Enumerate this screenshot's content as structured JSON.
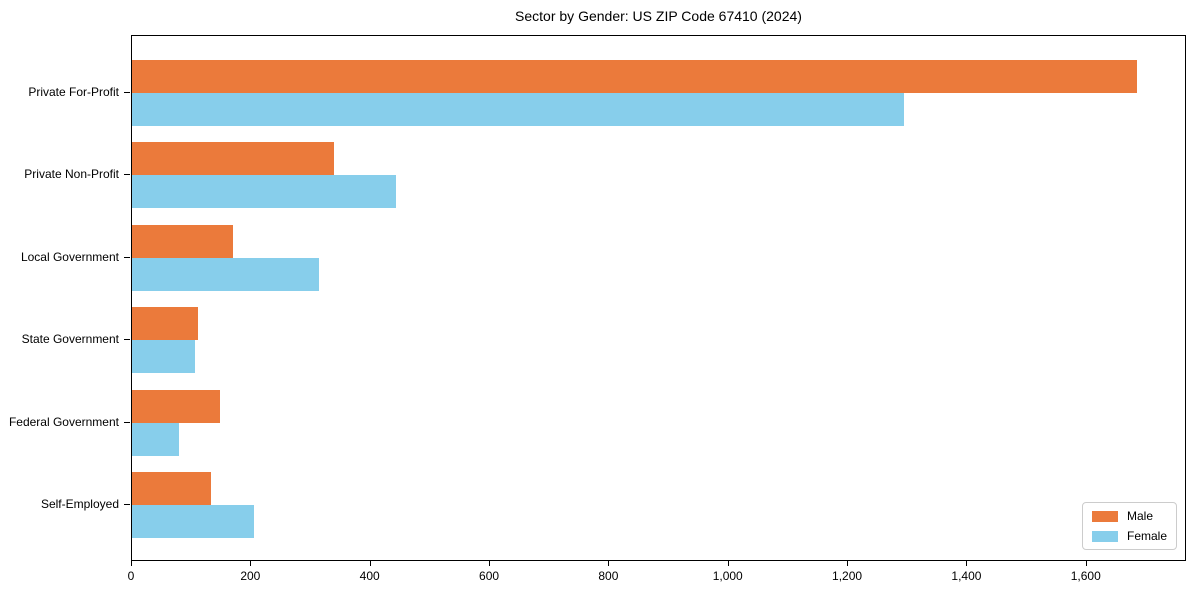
{
  "title": "Sector by Gender: US ZIP Code 67410 (2024)",
  "chart_data": {
    "type": "bar",
    "orientation": "horizontal",
    "title": "Sector by Gender: US ZIP Code 67410 (2024)",
    "categories": [
      "Private For-Profit",
      "Private Non-Profit",
      "Local Government",
      "State Government",
      "Federal Government",
      "Self-Employed"
    ],
    "series": [
      {
        "name": "Male",
        "color": "#eb7a3b",
        "values": [
          1684,
          338,
          170,
          110,
          148,
          133
        ]
      },
      {
        "name": "Female",
        "color": "#87ceeb",
        "values": [
          1294,
          442,
          314,
          105,
          79,
          204
        ]
      }
    ],
    "xlabel": "",
    "ylabel": "",
    "xlim": [
      0,
      1768
    ],
    "x_ticks": [
      0,
      200,
      400,
      600,
      800,
      1000,
      1200,
      1400,
      1600
    ],
    "x_tick_labels": [
      "0",
      "200",
      "400",
      "600",
      "800",
      "1,000",
      "1,200",
      "1,400",
      "1,600"
    ],
    "grid": false,
    "legend_position": "lower right",
    "axis_color": "#000000",
    "background_color": "#ffffff"
  }
}
